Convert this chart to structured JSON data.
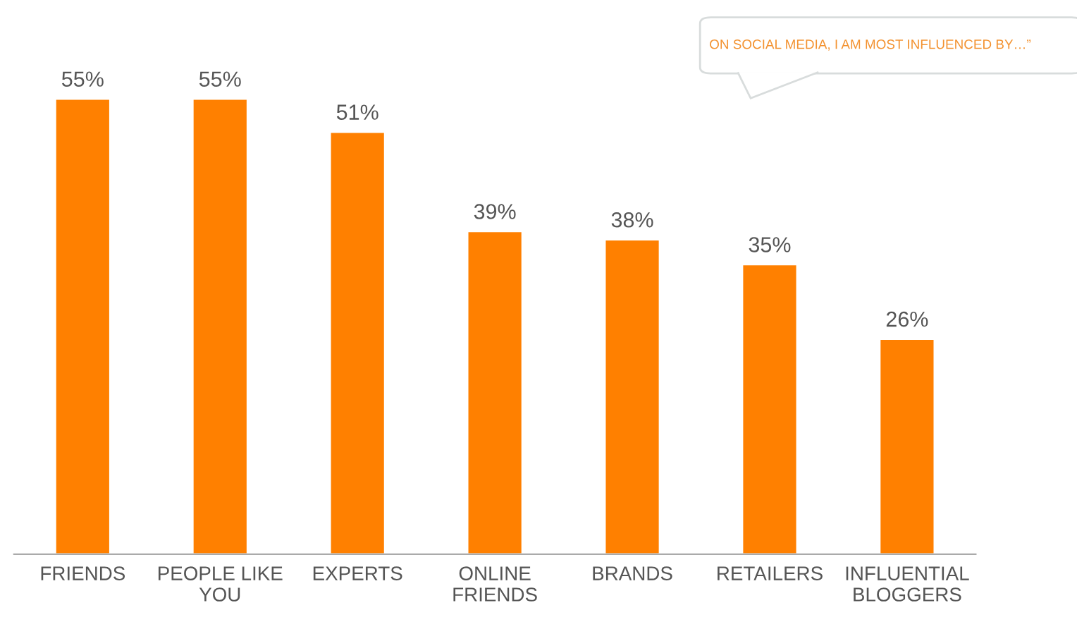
{
  "chart_data": {
    "type": "bar",
    "categories": [
      "FRIENDS",
      "PEOPLE LIKE\nYOU",
      "EXPERTS",
      "ONLINE\nFRIENDS",
      "BRANDS",
      "RETAILERS",
      "INFLUENTIAL\nBLOGGERS"
    ],
    "values": [
      55,
      55,
      51,
      39,
      38,
      35,
      26
    ],
    "color": "#ff8000",
    "value_labels": [
      "55%",
      "55%",
      "51%",
      "39%",
      "38%",
      "35%",
      "26%"
    ],
    "annotations": [
      "ON SOCIAL MEDIA, I AM MOST INFLUENCED BY…”"
    ],
    "grid": false,
    "legend": false
  }
}
